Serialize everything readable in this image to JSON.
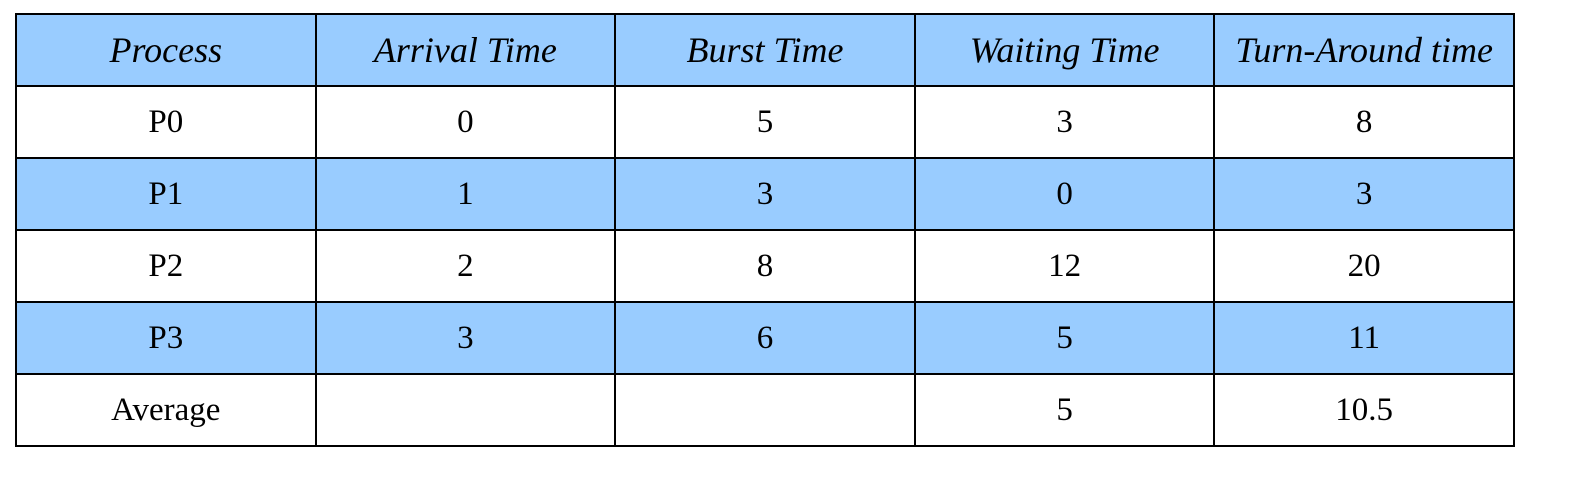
{
  "table": {
    "header": [
      "Process",
      "Arrival Time",
      "Burst Time",
      "Waiting Time",
      "Turn-Around time"
    ],
    "rows": [
      [
        "P0",
        "0",
        "5",
        "3",
        "8"
      ],
      [
        "P1",
        "1",
        "3",
        "0",
        "3"
      ],
      [
        "P2",
        "2",
        "8",
        "12",
        "20"
      ],
      [
        "P3",
        "3",
        "6",
        "5",
        "11"
      ],
      [
        "Average",
        "",
        "",
        "5",
        "10.5"
      ]
    ]
  },
  "colors": {
    "header_background": "#99ccff",
    "alternate_row_background": "#99ccff",
    "row_background": "#ffffff",
    "border": "#000000"
  }
}
